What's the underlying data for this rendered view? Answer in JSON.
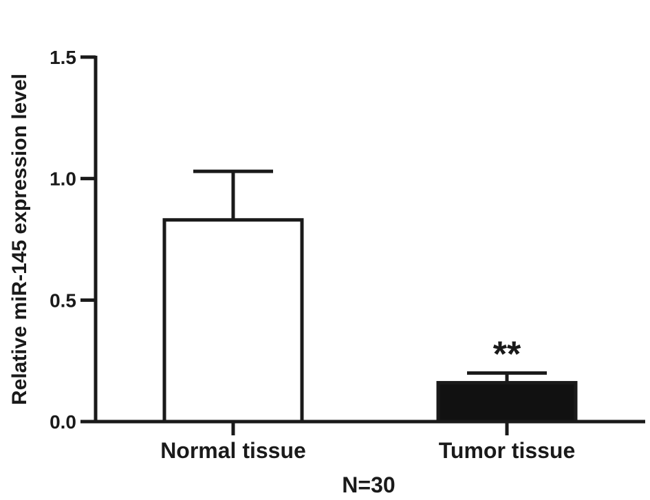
{
  "chart_data": {
    "type": "bar",
    "categories": [
      "Normal tissue",
      "Tumor tissue"
    ],
    "values": [
      0.83,
      0.16
    ],
    "error_upper": [
      1.03,
      0.2
    ],
    "bar_fills": [
      "#ffffff",
      "#111111"
    ],
    "annotations": [
      "",
      "**"
    ],
    "ylabel": "Relative miR-145 expression level",
    "xlabel": "N=30",
    "ylim": [
      0,
      1.5
    ],
    "yticks": [
      "0.0",
      "0.5",
      "1.0",
      "1.5"
    ],
    "grid": false
  }
}
